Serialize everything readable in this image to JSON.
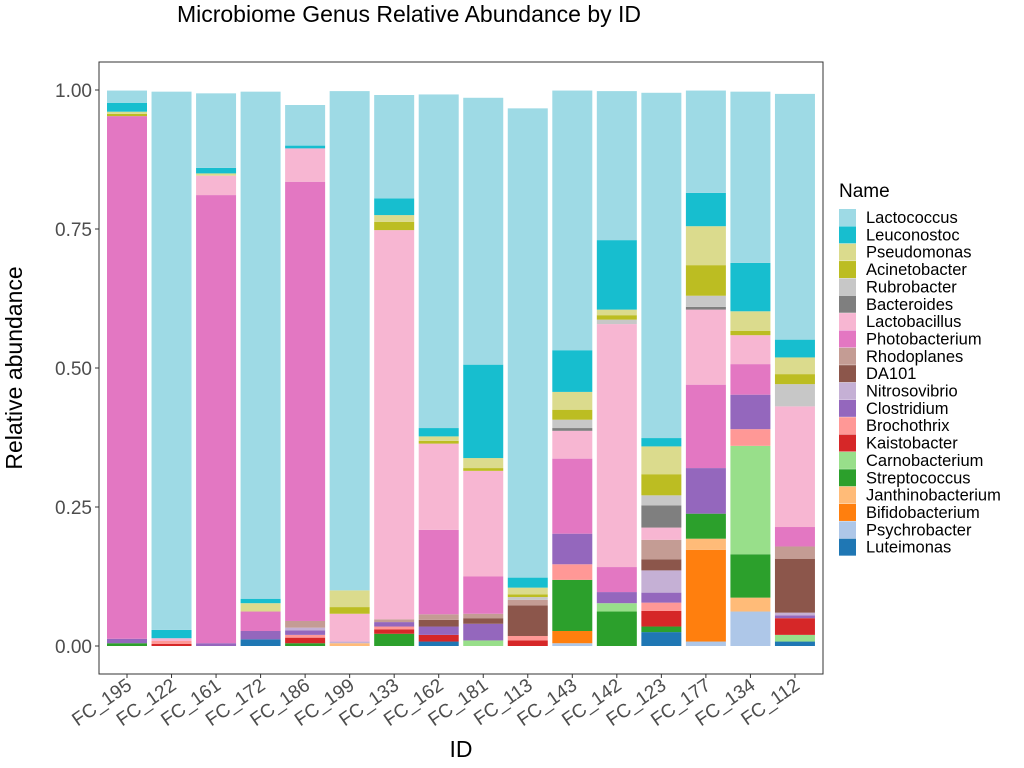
{
  "chart_data": {
    "type": "bar",
    "stacked": true,
    "title": "Microbiome Genus Relative Abundance by ID",
    "xlabel": "ID",
    "ylabel": "Relative abundance",
    "ylim": [
      0,
      1
    ],
    "yticks": [
      "0.00",
      "0.25",
      "0.50",
      "0.75",
      "1.00"
    ],
    "grid": false,
    "legend_title": "Name",
    "legend_position": "right",
    "categories": [
      "FC_195",
      "FC_122",
      "FC_161",
      "FC_172",
      "FC_186",
      "FC_199",
      "FC_133",
      "FC_162",
      "FC_181",
      "FC_113",
      "FC_143",
      "FC_142",
      "FC_123",
      "FC_177",
      "FC_134",
      "FC_112"
    ],
    "series": [
      {
        "name": "Lactococcus",
        "color": "#9edae5",
        "values": [
          0.022,
          0.968,
          0.134,
          0.912,
          0.073,
          0.898,
          0.186,
          0.6,
          0.48,
          0.844,
          0.467,
          0.268,
          0.621,
          0.184,
          0.308,
          0.442
        ]
      },
      {
        "name": "Leuconostoc",
        "color": "#17becf",
        "values": [
          0.016,
          0.015,
          0.01,
          0.008,
          0.005,
          0.0,
          0.03,
          0.015,
          0.168,
          0.018,
          0.075,
          0.125,
          0.015,
          0.06,
          0.087,
          0.032
        ]
      },
      {
        "name": "Pseudomonas",
        "color": "#dbdb8d",
        "values": [
          0.004,
          0.0,
          0.004,
          0.015,
          0.0,
          0.03,
          0.012,
          0.008,
          0.018,
          0.012,
          0.032,
          0.01,
          0.05,
          0.07,
          0.035,
          0.03
        ]
      },
      {
        "name": "Acinetobacter",
        "color": "#bcbd22",
        "values": [
          0.004,
          0.0,
          0.0,
          0.0,
          0.0,
          0.012,
          0.015,
          0.005,
          0.005,
          0.005,
          0.018,
          0.008,
          0.038,
          0.055,
          0.008,
          0.018
        ]
      },
      {
        "name": "Rubrobacter",
        "color": "#c7c7c7",
        "values": [
          0.0,
          0.0,
          0.0,
          0.0,
          0.0,
          0.0,
          0.0,
          0.0,
          0.0,
          0.005,
          0.015,
          0.008,
          0.018,
          0.02,
          0.0,
          0.04
        ]
      },
      {
        "name": "Bacteroides",
        "color": "#7f7f7f",
        "values": [
          0.0,
          0.0,
          0.0,
          0.0,
          0.0,
          0.0,
          0.0,
          0.0,
          0.0,
          0.0,
          0.005,
          0.0,
          0.04,
          0.005,
          0.0,
          0.0
        ]
      },
      {
        "name": "Lactobacillus",
        "color": "#f7b6d2",
        "values": [
          0.0,
          0.005,
          0.035,
          0.0,
          0.06,
          0.05,
          0.7,
          0.155,
          0.19,
          0.0,
          0.05,
          0.437,
          0.022,
          0.135,
          0.052,
          0.217
        ]
      },
      {
        "name": "Photobacterium",
        "color": "#e377c2",
        "values": [
          0.94,
          0.0,
          0.806,
          0.035,
          0.79,
          0.0,
          0.0,
          0.152,
          0.067,
          0.0,
          0.135,
          0.045,
          0.0,
          0.15,
          0.055,
          0.035
        ]
      },
      {
        "name": "Rhodoplanes",
        "color": "#c49c94",
        "values": [
          0.0,
          0.0,
          0.0,
          0.0,
          0.012,
          0.0,
          0.005,
          0.01,
          0.008,
          0.01,
          0.0,
          0.0,
          0.035,
          0.0,
          0.0,
          0.022
        ]
      },
      {
        "name": "DA101",
        "color": "#8c564b",
        "values": [
          0.0,
          0.0,
          0.0,
          0.0,
          0.0,
          0.0,
          0.0,
          0.012,
          0.01,
          0.055,
          0.0,
          0.0,
          0.02,
          0.0,
          0.0,
          0.097
        ]
      },
      {
        "name": "Nitrosovibrio",
        "color": "#c5b0d5",
        "values": [
          0.0,
          0.0,
          0.0,
          0.0,
          0.005,
          0.003,
          0.0,
          0.0,
          0.0,
          0.0,
          0.0,
          0.0,
          0.04,
          0.0,
          0.0,
          0.005
        ]
      },
      {
        "name": "Clostridium",
        "color": "#9467bd",
        "values": [
          0.008,
          0.0,
          0.005,
          0.015,
          0.008,
          0.0,
          0.008,
          0.015,
          0.03,
          0.0,
          0.055,
          0.02,
          0.018,
          0.082,
          0.062,
          0.005
        ]
      },
      {
        "name": "Brochothrix",
        "color": "#ff9896",
        "values": [
          0.0,
          0.005,
          0.0,
          0.0,
          0.005,
          0.0,
          0.005,
          0.0,
          0.0,
          0.008,
          0.028,
          0.0,
          0.015,
          0.0,
          0.03,
          0.0
        ]
      },
      {
        "name": "Kaistobacter",
        "color": "#d62728",
        "values": [
          0.0,
          0.004,
          0.0,
          0.0,
          0.01,
          0.0,
          0.008,
          0.012,
          0.0,
          0.01,
          0.0,
          0.0,
          0.028,
          0.0,
          0.0,
          0.03
        ]
      },
      {
        "name": "Carnobacterium",
        "color": "#98df8a",
        "values": [
          0.0,
          0.0,
          0.0,
          0.0,
          0.0,
          0.0,
          0.0,
          0.0,
          0.01,
          0.0,
          0.0,
          0.015,
          0.0,
          0.0,
          0.195,
          0.012
        ]
      },
      {
        "name": "Streptococcus",
        "color": "#2ca02c",
        "values": [
          0.005,
          0.0,
          0.0,
          0.0,
          0.005,
          0.0,
          0.022,
          0.0,
          0.0,
          0.0,
          0.092,
          0.062,
          0.01,
          0.045,
          0.078,
          0.0
        ]
      },
      {
        "name": "Janthinobacterium",
        "color": "#ffbb78",
        "values": [
          0.0,
          0.0,
          0.0,
          0.0,
          0.0,
          0.005,
          0.0,
          0.0,
          0.0,
          0.0,
          0.0,
          0.0,
          0.0,
          0.02,
          0.025,
          0.0
        ]
      },
      {
        "name": "Bifidobacterium",
        "color": "#ff7f0e",
        "values": [
          0.0,
          0.0,
          0.0,
          0.0,
          0.0,
          0.0,
          0.0,
          0.0,
          0.0,
          0.0,
          0.022,
          0.0,
          0.0,
          0.165,
          0.0,
          0.0
        ]
      },
      {
        "name": "Psychrobacter",
        "color": "#aec7e8",
        "values": [
          0.0,
          0.0,
          0.0,
          0.0,
          0.0,
          0.0,
          0.0,
          0.0,
          0.0,
          0.0,
          0.005,
          0.0,
          0.0,
          0.008,
          0.062,
          0.0
        ]
      },
      {
        "name": "Luteimonas",
        "color": "#1f77b4",
        "values": [
          0.0,
          0.0,
          0.0,
          0.012,
          0.0,
          0.0,
          0.0,
          0.008,
          0.0,
          0.0,
          0.0,
          0.0,
          0.025,
          0.0,
          0.0,
          0.008
        ]
      }
    ]
  }
}
